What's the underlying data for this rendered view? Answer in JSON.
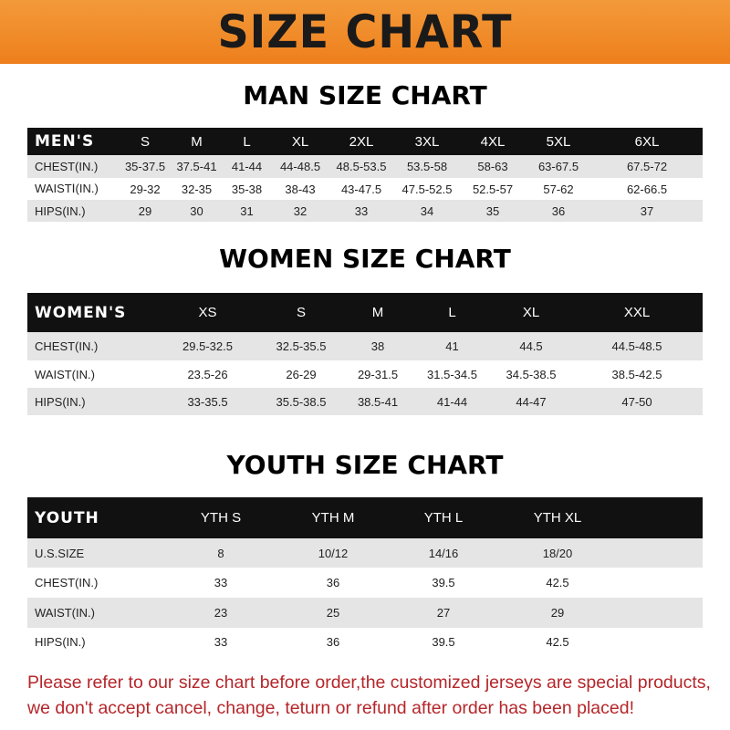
{
  "banner": "SIZE CHART",
  "men": {
    "title": "MAN SIZE CHART",
    "header": [
      "MEN'S",
      "S",
      "M",
      "L",
      "XL",
      "2XL",
      "3XL",
      "4XL",
      "5XL",
      "6XL"
    ],
    "rows": [
      [
        "CHEST(IN.)",
        "35-37.5",
        "37.5-41",
        "41-44",
        "44-48.5",
        "48.5-53.5",
        "53.5-58",
        "58-63",
        "63-67.5",
        "67.5-72"
      ],
      [
        "WAISTⅠ(IN.)",
        "29-32",
        "32-35",
        "35-38",
        "38-43",
        "43-47.5",
        "47.5-52.5",
        "52.5-57",
        "57-62",
        "62-66.5"
      ],
      [
        "HIPS(IN.)",
        "29",
        "30",
        "31",
        "32",
        "33",
        "34",
        "35",
        "36",
        "37"
      ]
    ]
  },
  "women": {
    "title": "WOMEN SIZE CHART",
    "header": [
      "WOMEN'S",
      "XS",
      "S",
      "M",
      "L",
      "XL",
      "XXL"
    ],
    "rows": [
      [
        "CHEST(IN.)",
        "29.5-32.5",
        "32.5-35.5",
        "38",
        "41",
        "44.5",
        "44.5-48.5"
      ],
      [
        "WAIST(IN.)",
        "23.5-26",
        "26-29",
        "29-31.5",
        "31.5-34.5",
        "34.5-38.5",
        "38.5-42.5"
      ],
      [
        "HIPS(IN.)",
        "33-35.5",
        "35.5-38.5",
        "38.5-41",
        "41-44",
        "44-47",
        "47-50"
      ]
    ]
  },
  "youth": {
    "title": "YOUTH SIZE CHART",
    "header": [
      "YOUTH",
      "YTH S",
      "YTH M",
      "YTH L",
      "YTH XL"
    ],
    "rows": [
      [
        "U.S.SIZE",
        "8",
        "10/12",
        "14/16",
        "18/20"
      ],
      [
        "CHEST(IN.)",
        "33",
        "36",
        "39.5",
        "42.5"
      ],
      [
        "WAIST(IN.)",
        "23",
        "25",
        "27",
        "29"
      ],
      [
        "HIPS(IN.)",
        "33",
        "36",
        "39.5",
        "42.5"
      ]
    ]
  },
  "note": [
    "Please refer to our size chart before order,the customized jerseys are special products,",
    "we don't accept cancel, change, teturn or refund after order has been placed!"
  ]
}
